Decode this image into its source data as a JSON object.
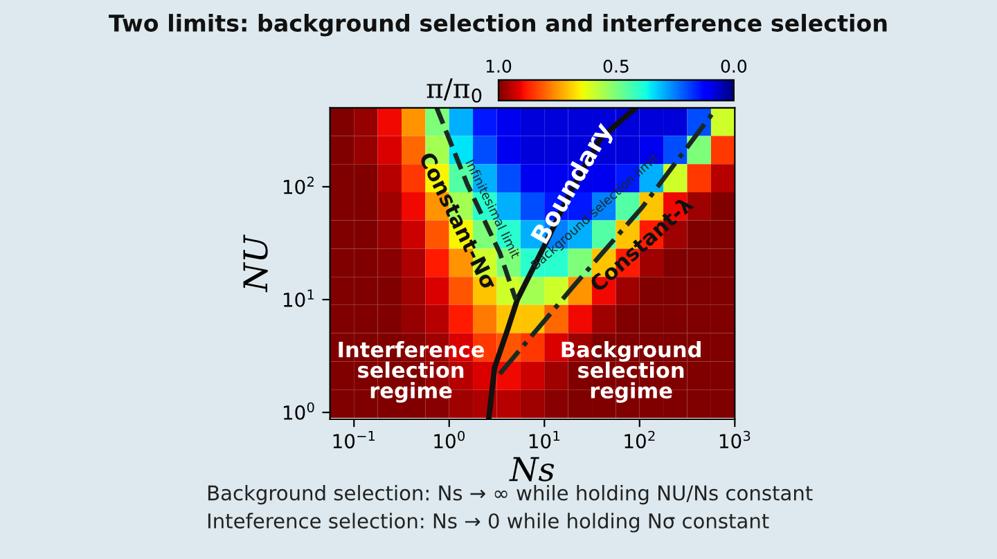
{
  "chart_data": {
    "type": "heatmap",
    "title": "Two limits: background selection and interference selection",
    "xlabel": "Ns",
    "ylabel": "NU",
    "clabel": "π/π$_{0}$",
    "log": "xy",
    "x": [
      0.075,
      0.133,
      0.237,
      0.422,
      0.75,
      1.33,
      2.37,
      4.22,
      7.5,
      13.3,
      23.7,
      42.2,
      75,
      133,
      237,
      422,
      750
    ],
    "y": [
      376,
      211,
      119,
      67,
      38,
      21,
      12,
      6.7,
      3.8,
      2.1,
      1.19
    ],
    "cells": [
      [
        1.0,
        0.98,
        0.9,
        0.75,
        0.5,
        0.3,
        0.15,
        0.1,
        0.08,
        0.08,
        0.08,
        0.08,
        0.08,
        0.08,
        0.08,
        0.2,
        0.6
      ],
      [
        1.0,
        0.98,
        0.92,
        0.8,
        0.55,
        0.35,
        0.2,
        0.1,
        0.08,
        0.08,
        0.08,
        0.08,
        0.08,
        0.1,
        0.2,
        0.5,
        0.85
      ],
      [
        1.0,
        1.0,
        0.95,
        0.85,
        0.65,
        0.45,
        0.3,
        0.2,
        0.1,
        0.1,
        0.1,
        0.1,
        0.15,
        0.3,
        0.6,
        0.85,
        0.95
      ],
      [
        1.0,
        1.0,
        0.97,
        0.9,
        0.75,
        0.55,
        0.4,
        0.3,
        0.2,
        0.15,
        0.15,
        0.25,
        0.45,
        0.7,
        0.9,
        0.97,
        1.0
      ],
      [
        1.0,
        1.0,
        0.98,
        0.93,
        0.82,
        0.65,
        0.5,
        0.4,
        0.3,
        0.25,
        0.3,
        0.45,
        0.7,
        0.88,
        0.97,
        1.0,
        1.0
      ],
      [
        1.0,
        1.0,
        0.99,
        0.96,
        0.88,
        0.75,
        0.6,
        0.5,
        0.4,
        0.4,
        0.5,
        0.7,
        0.88,
        0.97,
        1.0,
        1.0,
        1.0
      ],
      [
        1.0,
        1.0,
        1.0,
        0.97,
        0.92,
        0.82,
        0.7,
        0.6,
        0.55,
        0.6,
        0.75,
        0.9,
        0.97,
        1.0,
        1.0,
        1.0,
        1.0
      ],
      [
        1.0,
        1.0,
        1.0,
        0.98,
        0.95,
        0.88,
        0.78,
        0.7,
        0.7,
        0.8,
        0.9,
        0.97,
        1.0,
        1.0,
        1.0,
        1.0,
        1.0
      ],
      [
        1.0,
        1.0,
        1.0,
        0.99,
        0.97,
        0.92,
        0.85,
        0.82,
        0.85,
        0.92,
        0.97,
        1.0,
        1.0,
        1.0,
        1.0,
        1.0,
        1.0
      ],
      [
        1.0,
        1.0,
        1.0,
        1.0,
        0.98,
        0.95,
        0.92,
        0.9,
        0.93,
        0.97,
        1.0,
        1.0,
        1.0,
        1.0,
        1.0,
        1.0,
        1.0
      ],
      [
        1.0,
        1.0,
        1.0,
        1.0,
        0.99,
        0.97,
        0.96,
        0.95,
        0.97,
        0.99,
        1.0,
        1.0,
        1.0,
        1.0,
        1.0,
        1.0,
        1.0
      ]
    ],
    "clim": [
      1.0,
      0.0
    ],
    "cticks": [
      {
        "value": 1,
        "label": "1.0"
      },
      {
        "value": 0.5,
        "label": "0.5"
      },
      {
        "value": 0,
        "label": "0.0"
      }
    ],
    "series": [
      {
        "type": "line",
        "color": "#111111",
        "line_style": "solid",
        "x": [
          2.6,
          3.0,
          4.1,
          5.2,
          10,
          20,
          39,
          91
        ],
        "values": [
          0.87,
          2.5,
          5.4,
          10,
          30,
          100,
          270,
          500
        ]
      },
      {
        "type": "line",
        "color": "#1a2a22",
        "line_style": "dashed",
        "x": [
          0.74,
          1.55,
          3.4,
          5.0
        ],
        "values": [
          500,
          105,
          26,
          10
        ]
      },
      {
        "type": "line",
        "color": "#1a2a22",
        "line_style": "dashdot",
        "x": [
          3.4,
          20,
          107,
          575
        ],
        "values": [
          2.2,
          13,
          66,
          440
        ]
      }
    ],
    "xlim": [
      0.056,
      1000
    ],
    "ylim": [
      0.87,
      500
    ],
    "xticks": [
      {
        "value": 0.1,
        "label": "10$^{−1}$"
      },
      {
        "value": 1,
        "label": "10$^{0}$"
      },
      {
        "value": 10,
        "label": "10$^{1}$"
      },
      {
        "value": 100,
        "label": "10$^{2}$"
      },
      {
        "value": 1000,
        "label": "10$^{3}$"
      }
    ],
    "yticks": [
      {
        "value": 1,
        "label": "10$^{0}$"
      },
      {
        "value": 10,
        "label": "10$^{1}$"
      },
      {
        "value": 100,
        "label": "10$^{2}$"
      }
    ],
    "grid": false,
    "annotations": [
      {
        "text": "Boundary",
        "x": 20,
        "y": 105
      },
      "Constant-Nσ",
      "Infinitesimal limit",
      "Background selection limit",
      "Constant-λ",
      "Interference\nselection\nregime",
      "Background\nselection\nregime",
      "Background selection: Ns → ∞ while holding NU/Ns constant",
      "Inteference selection: Ns → 0 while holding Nσ constant"
    ]
  }
}
